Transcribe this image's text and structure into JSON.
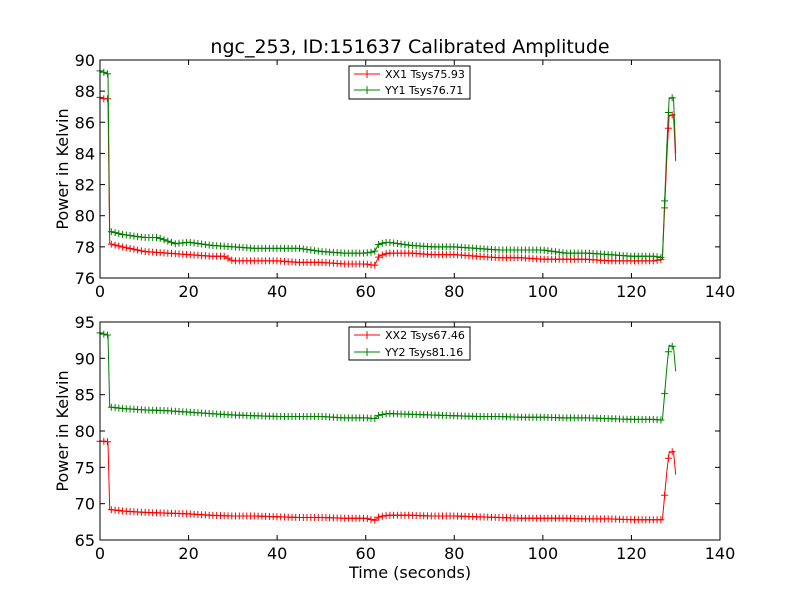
{
  "chart_data": [
    {
      "type": "line",
      "title": "ngc_253, ID:151637 Calibrated Amplitude",
      "xlabel": "",
      "ylabel": "Power in Kelvin",
      "xlim": [
        0,
        140
      ],
      "ylim": [
        76,
        90
      ],
      "xticks": [
        "0",
        "20",
        "40",
        "60",
        "80",
        "100",
        "120",
        "140"
      ],
      "yticks": [
        "76",
        "78",
        "80",
        "82",
        "84",
        "86",
        "88",
        "90"
      ],
      "grid": false,
      "legend_position": "top-center",
      "series": [
        {
          "name": "XX1 Tsys75.93",
          "color": "#ff0000",
          "points": [
            [
              0,
              87.6
            ],
            [
              1,
              87.5
            ],
            [
              1.8,
              87.5
            ],
            [
              2.2,
              78.2
            ],
            [
              5,
              78.0
            ],
            [
              10,
              77.7
            ],
            [
              15,
              77.6
            ],
            [
              20,
              77.5
            ],
            [
              25,
              77.4
            ],
            [
              28,
              77.4
            ],
            [
              30,
              77.1
            ],
            [
              35,
              77.1
            ],
            [
              40,
              77.1
            ],
            [
              45,
              77.0
            ],
            [
              50,
              77.0
            ],
            [
              55,
              76.9
            ],
            [
              60,
              76.9
            ],
            [
              62,
              76.8
            ],
            [
              63,
              77.4
            ],
            [
              65,
              77.6
            ],
            [
              70,
              77.6
            ],
            [
              75,
              77.5
            ],
            [
              80,
              77.5
            ],
            [
              85,
              77.4
            ],
            [
              90,
              77.3
            ],
            [
              95,
              77.3
            ],
            [
              100,
              77.2
            ],
            [
              105,
              77.2
            ],
            [
              110,
              77.2
            ],
            [
              115,
              77.1
            ],
            [
              120,
              77.1
            ],
            [
              125,
              77.1
            ],
            [
              127,
              77.2
            ],
            [
              128,
              83.8
            ],
            [
              128.5,
              86.4
            ],
            [
              129.5,
              86.5
            ],
            [
              130,
              83.5
            ]
          ]
        },
        {
          "name": "YY1 Tsys76.71",
          "color": "#008000",
          "points": [
            [
              0,
              89.3
            ],
            [
              1,
              89.2
            ],
            [
              1.8,
              89.1
            ],
            [
              2.2,
              79.0
            ],
            [
              5,
              78.8
            ],
            [
              10,
              78.6
            ],
            [
              13,
              78.6
            ],
            [
              15,
              78.4
            ],
            [
              17,
              78.2
            ],
            [
              20,
              78.3
            ],
            [
              25,
              78.1
            ],
            [
              30,
              78.0
            ],
            [
              35,
              77.9
            ],
            [
              40,
              77.9
            ],
            [
              45,
              77.9
            ],
            [
              50,
              77.7
            ],
            [
              55,
              77.6
            ],
            [
              60,
              77.6
            ],
            [
              62,
              77.7
            ],
            [
              63,
              78.2
            ],
            [
              65,
              78.3
            ],
            [
              70,
              78.1
            ],
            [
              75,
              78.0
            ],
            [
              80,
              78.0
            ],
            [
              85,
              77.9
            ],
            [
              90,
              77.8
            ],
            [
              95,
              77.8
            ],
            [
              100,
              77.8
            ],
            [
              105,
              77.6
            ],
            [
              110,
              77.6
            ],
            [
              115,
              77.5
            ],
            [
              120,
              77.4
            ],
            [
              125,
              77.4
            ],
            [
              127,
              77.3
            ],
            [
              128,
              84.6
            ],
            [
              128.5,
              87.5
            ],
            [
              129.5,
              87.6
            ],
            [
              130,
              84.0
            ]
          ]
        }
      ]
    },
    {
      "type": "line",
      "title": "",
      "xlabel": "Time (seconds)",
      "ylabel": "Power in Kelvin",
      "xlim": [
        0,
        140
      ],
      "ylim": [
        65,
        95
      ],
      "xticks": [
        "0",
        "20",
        "40",
        "60",
        "80",
        "100",
        "120",
        "140"
      ],
      "yticks": [
        "65",
        "70",
        "75",
        "80",
        "85",
        "90",
        "95"
      ],
      "grid": false,
      "legend_position": "top-center",
      "series": [
        {
          "name": "XX2 Tsys67.46",
          "color": "#ff0000",
          "points": [
            [
              0,
              78.6
            ],
            [
              1,
              78.6
            ],
            [
              1.8,
              78.5
            ],
            [
              2.2,
              69.2
            ],
            [
              5,
              69.0
            ],
            [
              10,
              68.8
            ],
            [
              15,
              68.7
            ],
            [
              20,
              68.6
            ],
            [
              25,
              68.4
            ],
            [
              30,
              68.3
            ],
            [
              35,
              68.3
            ],
            [
              40,
              68.2
            ],
            [
              45,
              68.1
            ],
            [
              50,
              68.1
            ],
            [
              55,
              68.0
            ],
            [
              60,
              68.0
            ],
            [
              62,
              67.7
            ],
            [
              63,
              68.2
            ],
            [
              65,
              68.4
            ],
            [
              70,
              68.4
            ],
            [
              75,
              68.3
            ],
            [
              80,
              68.3
            ],
            [
              85,
              68.2
            ],
            [
              90,
              68.1
            ],
            [
              95,
              68.0
            ],
            [
              100,
              68.0
            ],
            [
              105,
              68.0
            ],
            [
              110,
              67.9
            ],
            [
              115,
              67.9
            ],
            [
              120,
              67.8
            ],
            [
              125,
              67.8
            ],
            [
              127,
              67.8
            ],
            [
              128,
              74.5
            ],
            [
              128.5,
              77.0
            ],
            [
              129.5,
              77.2
            ],
            [
              130,
              74.0
            ]
          ]
        },
        {
          "name": "YY2 Tsys81.16",
          "color": "#008000",
          "points": [
            [
              0,
              93.5
            ],
            [
              1,
              93.3
            ],
            [
              1.8,
              93.2
            ],
            [
              2.2,
              83.3
            ],
            [
              5,
              83.1
            ],
            [
              10,
              82.9
            ],
            [
              15,
              82.8
            ],
            [
              20,
              82.6
            ],
            [
              25,
              82.4
            ],
            [
              30,
              82.2
            ],
            [
              35,
              82.1
            ],
            [
              40,
              82.0
            ],
            [
              45,
              82.0
            ],
            [
              50,
              82.0
            ],
            [
              55,
              81.8
            ],
            [
              60,
              81.8
            ],
            [
              62,
              81.7
            ],
            [
              63,
              82.2
            ],
            [
              65,
              82.4
            ],
            [
              70,
              82.3
            ],
            [
              75,
              82.2
            ],
            [
              80,
              82.1
            ],
            [
              85,
              82.0
            ],
            [
              90,
              82.0
            ],
            [
              95,
              81.9
            ],
            [
              100,
              81.9
            ],
            [
              105,
              81.8
            ],
            [
              110,
              81.8
            ],
            [
              115,
              81.7
            ],
            [
              120,
              81.6
            ],
            [
              125,
              81.6
            ],
            [
              127,
              81.5
            ],
            [
              128,
              88.8
            ],
            [
              128.5,
              91.8
            ],
            [
              129.5,
              91.6
            ],
            [
              130,
              88.2
            ]
          ]
        }
      ]
    }
  ]
}
